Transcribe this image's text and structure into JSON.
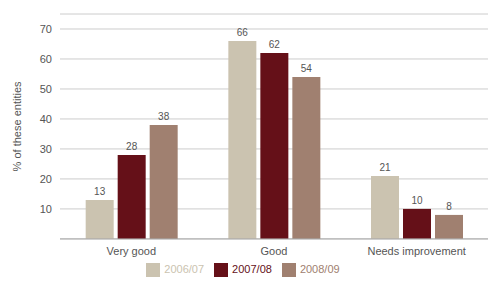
{
  "chart_data": {
    "type": "bar",
    "categories": [
      "Very good",
      "Good",
      "Needs improvement"
    ],
    "series": [
      {
        "name": "2006/07",
        "color": "#cbc3b0",
        "values": [
          13,
          66,
          21
        ]
      },
      {
        "name": "2007/08",
        "color": "#651018",
        "values": [
          28,
          62,
          10
        ]
      },
      {
        "name": "2008/09",
        "color": "#a08070",
        "values": [
          38,
          54,
          8
        ]
      }
    ],
    "y_label": "% of these entities",
    "ylim": [
      0,
      75
    ],
    "yticks": [
      10,
      20,
      30,
      40,
      50,
      60,
      70
    ],
    "grid": true,
    "legend": "bottom",
    "data_labels": true
  }
}
